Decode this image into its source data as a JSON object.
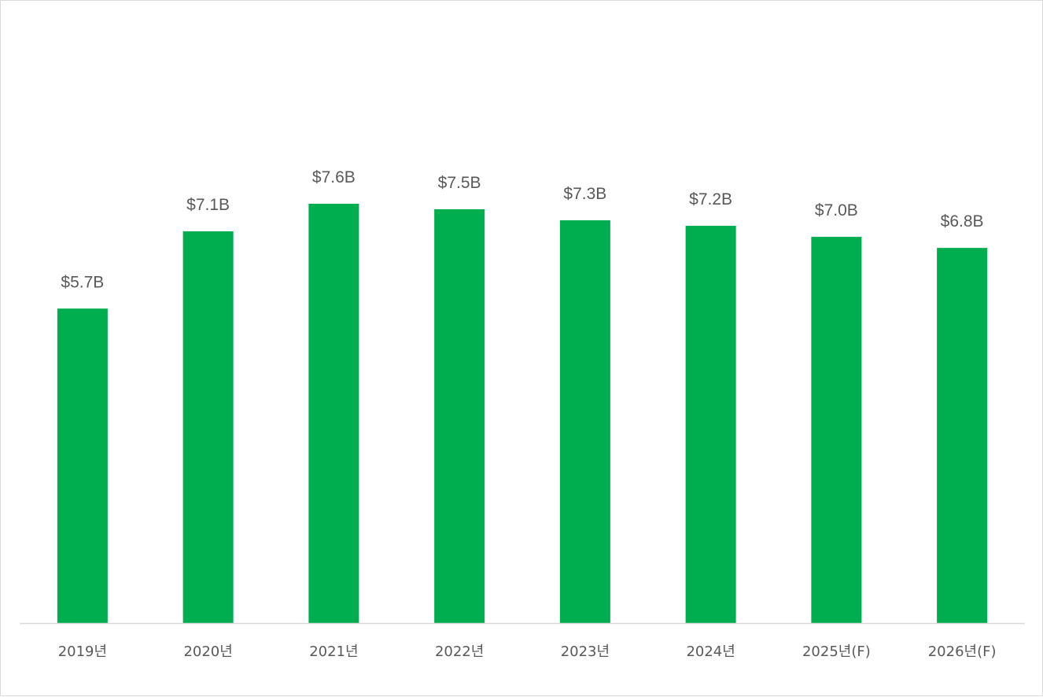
{
  "chart_data": {
    "type": "bar",
    "categories": [
      "2019년",
      "2020년",
      "2021년",
      "2022년",
      "2023년",
      "2024년",
      "2025년(F)",
      "2026년(F)"
    ],
    "values": [
      5.7,
      7.1,
      7.6,
      7.5,
      7.3,
      7.2,
      7.0,
      6.8
    ],
    "data_labels": [
      "$5.7B",
      "$7.1B",
      "$7.6B",
      "$7.5B",
      "$7.3B",
      "$7.2B",
      "$7.0B",
      "$6.8B"
    ],
    "title": "",
    "xlabel": "",
    "ylabel": "",
    "ylim": [
      0,
      7.6
    ],
    "grid": false,
    "legend": "none",
    "bar_color": "#00AD4F",
    "axis_color": "#D9D9D9",
    "label_color": "#595959"
  }
}
